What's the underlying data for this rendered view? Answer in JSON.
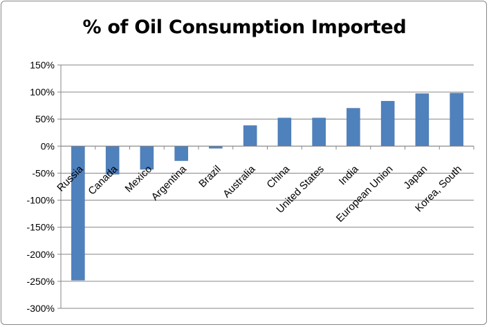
{
  "chart_data": {
    "type": "bar",
    "title": "% of Oil Consumption Imported",
    "xlabel": "",
    "ylabel": "",
    "categories": [
      "Russia",
      "Canada",
      "Mexico",
      "Argentina",
      "Brazil",
      "Australia",
      "China",
      "United States",
      "India",
      "European Union",
      "Japan",
      "Korea, South"
    ],
    "values": [
      -248,
      -52,
      -43,
      -27,
      -4,
      38,
      52,
      52,
      70,
      83,
      97,
      98
    ],
    "ylim": [
      -300,
      150
    ],
    "yticks": [
      150,
      100,
      50,
      0,
      -50,
      -100,
      -150,
      -200,
      -250,
      -300
    ],
    "ytick_labels": [
      "150%",
      "100%",
      "50%",
      "0%",
      "-50%",
      "-100%",
      "-150%",
      "-200%",
      "-250%",
      "-300%"
    ],
    "grid": true,
    "legend": "none",
    "bar_color": "#4F81BD"
  }
}
